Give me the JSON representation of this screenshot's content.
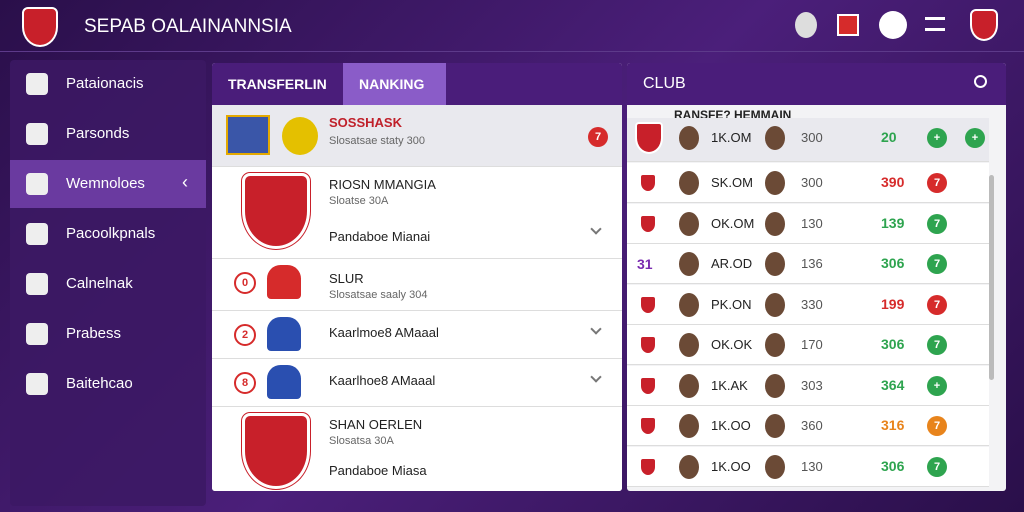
{
  "header": {
    "title": "SEPAB OALAINANNSIA"
  },
  "sidebar": {
    "items": [
      "Pataionacis",
      "Parsonds",
      "Wemnoloes",
      "Pacoolkpnals",
      "Calnelnak",
      "Prabess",
      "Baitehcao"
    ],
    "active": 2
  },
  "tabs": {
    "items": [
      "TRANSFERLIN",
      "NANKING"
    ],
    "active": 1
  },
  "list": [
    {
      "title": "SOSSHASK",
      "subtitle": "Slosatsae staty 300",
      "badge": "7"
    },
    {
      "title": "RIOSN MMANGIA",
      "subtitle": "Sloatse 30A",
      "extra": "Pandaboe Mianai"
    },
    {
      "title": "SLUR",
      "subtitle": "Slosatsae saaly 304",
      "badge": "0"
    },
    {
      "title": "Kaarlmoe8 AMaaal",
      "badge": "2"
    },
    {
      "title": "Kaarlhoe8 AMaaal",
      "badge": "8"
    },
    {
      "title": "SHAN OERLEN",
      "subtitle": "Slosatsa 30A",
      "extra": "Pandaboe Miasa"
    }
  ],
  "club": {
    "title": "CLUB",
    "subtitle": "RANSFE? HEMMAIN",
    "rows": [
      {
        "name": "1K.OM",
        "value": "300",
        "score": "20",
        "badge": "+",
        "color": "#2ea44f"
      },
      {
        "name": "SK.OM",
        "value": "300",
        "score": "390",
        "badge": "7",
        "color": "#d62b2b"
      },
      {
        "name": "OK.OM",
        "value": "130",
        "score": "139",
        "badge": "7",
        "color": "#2ea44f"
      },
      {
        "name": "AR.OD",
        "value": "136",
        "score": "306",
        "badge": "7",
        "color": "#2ea44f",
        "rank": "31"
      },
      {
        "name": "PK.ON",
        "value": "330",
        "score": "199",
        "badge": "7",
        "color": "#d62b2b"
      },
      {
        "name": "OK.OK",
        "value": "170",
        "score": "306",
        "badge": "7",
        "color": "#2ea44f"
      },
      {
        "name": "1K.AK",
        "value": "303",
        "score": "364",
        "badge": "+",
        "color": "#2ea44f"
      },
      {
        "name": "1K.OO",
        "value": "360",
        "score": "316",
        "badge": "7",
        "color": "#e8841c"
      },
      {
        "name": "1K.OO",
        "value": "130",
        "score": "306",
        "badge": "7",
        "color": "#2ea44f"
      }
    ]
  }
}
